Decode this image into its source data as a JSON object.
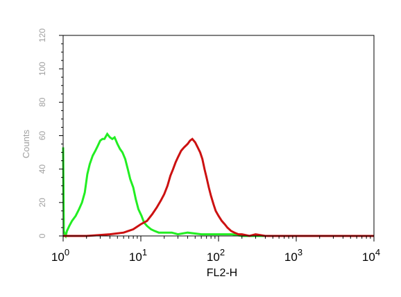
{
  "chart_data": {
    "type": "line",
    "title": "",
    "xlabel": "FL2-H",
    "ylabel": "Counts",
    "xscale": "log",
    "xlim": [
      1,
      10000
    ],
    "ylim": [
      0,
      120
    ],
    "grid": false,
    "x_ticks": [
      {
        "base": "10",
        "exp": "0",
        "value": 1
      },
      {
        "base": "10",
        "exp": "1",
        "value": 10
      },
      {
        "base": "10",
        "exp": "2",
        "value": 100
      },
      {
        "base": "10",
        "exp": "3",
        "value": 1000
      },
      {
        "base": "10",
        "exp": "4",
        "value": 10000
      }
    ],
    "y_ticks": [
      "0",
      "20",
      "40",
      "60",
      "80",
      "100",
      "120"
    ],
    "series": [
      {
        "color": "#22ee22",
        "x": [
          1.0,
          1.02,
          1.05,
          1.08,
          1.12,
          1.2,
          1.3,
          1.45,
          1.6,
          1.75,
          1.9,
          2.05,
          2.2,
          2.4,
          2.6,
          2.8,
          3.0,
          3.2,
          3.4,
          3.7,
          4.0,
          4.3,
          4.6,
          5.0,
          5.4,
          5.8,
          6.3,
          6.8,
          7.3,
          8.0,
          8.6,
          9.3,
          10.2,
          11.0,
          12.0,
          13.5,
          15.0,
          17.0,
          20,
          25,
          30,
          40,
          60,
          80,
          100,
          150,
          200,
          500,
          1000,
          3000,
          10000
        ],
        "y": [
          53,
          3,
          1,
          0,
          3,
          6,
          9,
          12,
          16,
          20,
          26,
          37,
          43,
          48,
          51,
          54,
          57,
          58,
          58,
          61,
          59,
          58,
          59,
          55,
          52,
          50,
          46,
          40,
          34,
          29,
          22,
          16,
          12,
          8,
          6,
          4,
          3,
          2,
          2,
          2,
          1,
          2,
          1,
          1,
          1,
          1,
          0,
          0,
          0,
          0,
          0
        ]
      },
      {
        "color": "#cc1111",
        "x": [
          1.0,
          2.0,
          4.0,
          6.0,
          8.0,
          10.0,
          12.0,
          14.0,
          16.0,
          18.0,
          20.0,
          22.0,
          24.0,
          26.0,
          28.0,
          30.0,
          33.0,
          36.0,
          40.0,
          43.0,
          46.0,
          50.0,
          54.0,
          58.0,
          62.0,
          66.0,
          70.0,
          75.0,
          80.0,
          86.0,
          92.0,
          100.0,
          110.0,
          120.0,
          130.0,
          145.0,
          160.0,
          180.0,
          200.0,
          250.0,
          300.0,
          400.0,
          1000.0,
          10000.0
        ],
        "y": [
          0,
          0,
          1,
          2,
          4,
          7,
          9,
          13,
          17,
          21,
          25,
          30,
          36,
          40,
          44,
          47,
          51,
          53,
          55,
          57,
          58,
          56,
          53,
          50,
          46,
          40,
          35,
          29,
          24,
          19,
          15,
          12,
          9,
          7,
          5,
          3,
          2,
          1,
          1,
          0,
          1,
          0,
          0,
          0
        ]
      }
    ]
  }
}
